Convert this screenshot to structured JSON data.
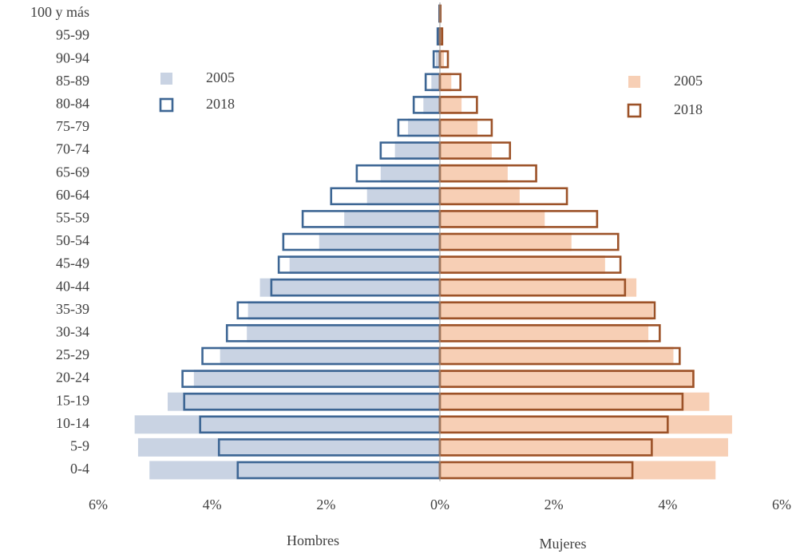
{
  "chart_data": {
    "type": "pyramid",
    "categories": [
      "0-4",
      "5-9",
      "10-14",
      "15-19",
      "20-24",
      "25-29",
      "30-34",
      "35-39",
      "40-44",
      "45-49",
      "50-54",
      "55-59",
      "60-64",
      "65-69",
      "70-74",
      "75-79",
      "80-84",
      "85-89",
      "90-94",
      "95-99",
      "100 y más"
    ],
    "left_label": "Hombres",
    "right_label": "Mujeres",
    "xlim": [
      -6,
      6
    ],
    "xticks": [
      {
        "value": -6,
        "label": "6%"
      },
      {
        "value": -4,
        "label": "4%"
      },
      {
        "value": -2,
        "label": "2%"
      },
      {
        "value": 0,
        "label": "0%"
      },
      {
        "value": 2,
        "label": "2%"
      },
      {
        "value": 4,
        "label": "4%"
      },
      {
        "value": 6,
        "label": "6%"
      }
    ],
    "series": [
      {
        "name": "2005",
        "side": "left",
        "style": "filled",
        "color": "#c9d3e3",
        "values": [
          5.1,
          5.3,
          5.36,
          4.78,
          4.32,
          3.86,
          3.39,
          3.37,
          3.16,
          2.64,
          2.12,
          1.68,
          1.28,
          1.04,
          0.79,
          0.56,
          0.29,
          0.15,
          0.07,
          0.03,
          0.01
        ]
      },
      {
        "name": "2018",
        "side": "left",
        "style": "outline",
        "color": "#3d6694",
        "values": [
          3.55,
          3.88,
          4.21,
          4.49,
          4.52,
          4.17,
          3.74,
          3.55,
          2.96,
          2.83,
          2.75,
          2.41,
          1.91,
          1.46,
          1.04,
          0.73,
          0.46,
          0.25,
          0.11,
          0.04,
          0.01
        ]
      },
      {
        "name": "2005",
        "side": "right",
        "style": "filled",
        "color": "#f7cfb5",
        "values": [
          4.84,
          5.06,
          5.13,
          4.73,
          4.47,
          4.1,
          3.66,
          3.74,
          3.45,
          2.9,
          2.31,
          1.84,
          1.4,
          1.19,
          0.91,
          0.66,
          0.38,
          0.2,
          0.07,
          0.03,
          0.01
        ]
      },
      {
        "name": "2018",
        "side": "right",
        "style": "outline",
        "color": "#9c5228",
        "values": [
          3.38,
          3.72,
          4.0,
          4.26,
          4.45,
          4.21,
          3.86,
          3.77,
          3.25,
          3.17,
          3.13,
          2.76,
          2.23,
          1.69,
          1.23,
          0.91,
          0.65,
          0.36,
          0.14,
          0.04,
          0.01
        ]
      }
    ]
  }
}
